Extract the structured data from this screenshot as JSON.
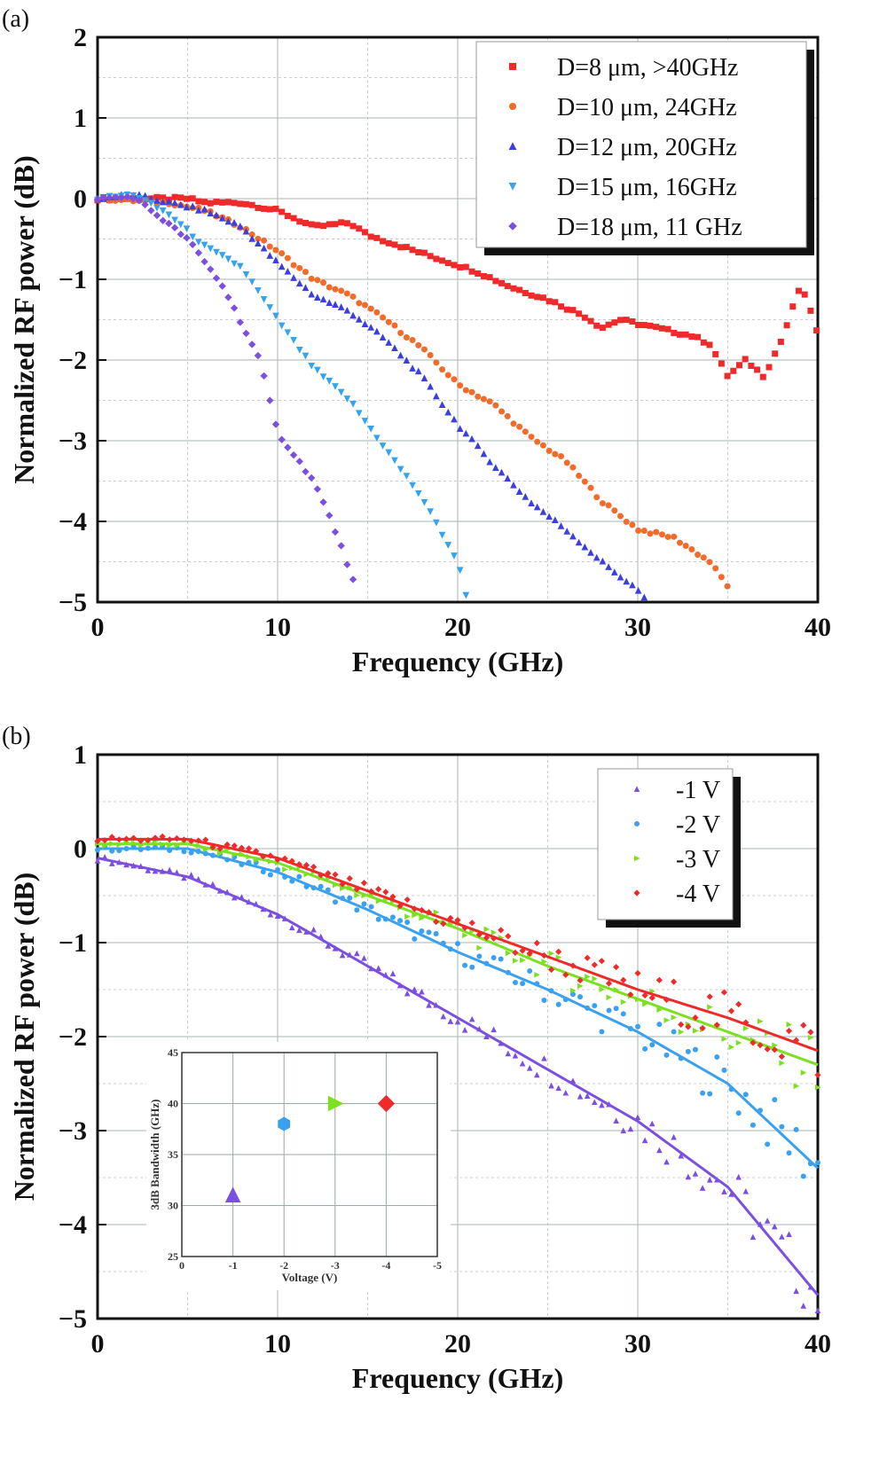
{
  "chart_data": [
    {
      "panel_label": "(a)",
      "type": "scatter",
      "xlabel": "Frequency (GHz)",
      "ylabel": "Normalized RF power (dB)",
      "xlim": [
        0,
        40
      ],
      "ylim": [
        -5,
        2
      ],
      "xticks": [
        "0",
        "10",
        "20",
        "30",
        "40"
      ],
      "yticks": [
        "2",
        "1",
        "0",
        "−1",
        "−2",
        "−3",
        "−4",
        "−5"
      ],
      "grid": true,
      "legend": "top-right",
      "series": [
        {
          "name": "D=8 μm, >40GHz",
          "color": "#ee2a2a",
          "marker": "square",
          "x": [
            0,
            2,
            4,
            5,
            6,
            8,
            10,
            12,
            14,
            15,
            17,
            19,
            21,
            23,
            25,
            27,
            28,
            29,
            31,
            33,
            34,
            35,
            36,
            37,
            38,
            39,
            39.5,
            40
          ],
          "y": [
            0,
            0,
            0,
            0,
            -0.05,
            -0.05,
            -0.15,
            -0.35,
            -0.3,
            -0.45,
            -0.6,
            -0.75,
            -0.9,
            -1.1,
            -1.25,
            -1.45,
            -1.6,
            -1.5,
            -1.6,
            -1.7,
            -1.8,
            -2.2,
            -2.0,
            -2.2,
            -1.75,
            -1.1,
            -1.3,
            -1.7
          ]
        },
        {
          "name": "D=10 μm, 24GHz",
          "color": "#f26b2a",
          "marker": "circle",
          "x": [
            0,
            4,
            6,
            8,
            10,
            12,
            14,
            16,
            18,
            20,
            22,
            24,
            26,
            28,
            30,
            32,
            34,
            35
          ],
          "y": [
            0,
            -0.05,
            -0.15,
            -0.35,
            -0.65,
            -1.0,
            -1.2,
            -1.5,
            -1.85,
            -2.3,
            -2.55,
            -2.95,
            -3.25,
            -3.75,
            -4.1,
            -4.2,
            -4.5,
            -4.8
          ]
        },
        {
          "name": "D=12 μm, 20GHz",
          "color": "#3b3fe0",
          "marker": "triangle-up",
          "x": [
            0,
            2,
            6,
            8,
            10,
            12,
            14,
            16,
            18,
            20,
            22,
            24,
            26,
            28,
            30,
            30.5
          ],
          "y": [
            0,
            0.05,
            -0.15,
            -0.35,
            -0.8,
            -1.2,
            -1.4,
            -1.75,
            -2.2,
            -2.8,
            -3.3,
            -3.75,
            -4.1,
            -4.5,
            -4.85,
            -5
          ]
        },
        {
          "name": "D=15 μm, 16GHz",
          "color": "#36a3ee",
          "marker": "triangle-down",
          "x": [
            0,
            2,
            4,
            6,
            8,
            10,
            12,
            14,
            16,
            18,
            20,
            20.5
          ],
          "y": [
            0,
            0.05,
            -0.2,
            -0.6,
            -0.85,
            -1.5,
            -2.1,
            -2.5,
            -3.1,
            -3.7,
            -4.5,
            -4.95
          ]
        },
        {
          "name": "D=18 μm, 11 GHz",
          "color": "#7b4fe0",
          "marker": "diamond",
          "x": [
            0,
            2,
            3,
            5,
            7,
            9,
            10,
            11,
            12,
            13,
            14,
            14.5
          ],
          "y": [
            0,
            0.02,
            -0.15,
            -0.5,
            -1.1,
            -2.0,
            -2.9,
            -3.2,
            -3.5,
            -4.0,
            -4.6,
            -4.95
          ]
        }
      ]
    },
    {
      "panel_label": "(b)",
      "type": "scatter",
      "xlabel": "Frequency (GHz)",
      "ylabel": "Normalized RF power (dB)",
      "xlim": [
        0,
        40
      ],
      "ylim": [
        -5,
        1
      ],
      "xticks": [
        "0",
        "10",
        "20",
        "30",
        "40"
      ],
      "yticks": [
        "1",
        "0",
        "−1",
        "−2",
        "−3",
        "−4",
        "−5"
      ],
      "grid": true,
      "legend": "top-right",
      "series": [
        {
          "name": "-1 V",
          "color": "#7b4fe0",
          "marker": "triangle-up",
          "x": [
            0,
            5,
            10,
            15,
            20,
            25,
            30,
            35,
            40
          ],
          "y": [
            -0.1,
            -0.3,
            -0.7,
            -1.25,
            -1.8,
            -2.35,
            -2.9,
            -3.6,
            -4.75
          ]
        },
        {
          "name": "-2 V",
          "color": "#3aa0f0",
          "marker": "circle",
          "x": [
            0,
            5,
            10,
            15,
            20,
            25,
            30,
            35,
            40
          ],
          "y": [
            0,
            0,
            -0.25,
            -0.65,
            -1.1,
            -1.5,
            -1.95,
            -2.5,
            -3.4
          ]
        },
        {
          "name": "-3 V",
          "color": "#7be020",
          "marker": "triangle-right",
          "x": [
            0,
            5,
            10,
            15,
            20,
            25,
            30,
            35,
            40
          ],
          "y": [
            0.05,
            0.05,
            -0.15,
            -0.5,
            -0.85,
            -1.25,
            -1.6,
            -1.95,
            -2.3
          ]
        },
        {
          "name": "-4 V",
          "color": "#ee2a2a",
          "marker": "diamond",
          "x": [
            0,
            5,
            10,
            15,
            20,
            25,
            30,
            35,
            40
          ],
          "y": [
            0.1,
            0.1,
            -0.1,
            -0.45,
            -0.8,
            -1.15,
            -1.5,
            -1.8,
            -2.15
          ]
        }
      ],
      "inset": {
        "type": "scatter",
        "xlabel": "Voltage (V)",
        "ylabel": "3dB Bandwidth (GHz)",
        "xlim": [
          0,
          -5
        ],
        "ylim": [
          25,
          45
        ],
        "xticks": [
          "0",
          "-1",
          "-2",
          "-3",
          "-4",
          "-5"
        ],
        "yticks": [
          "45",
          "40",
          "35",
          "30",
          "25"
        ],
        "points": [
          {
            "x": -1,
            "y": 31,
            "color": "#7b4fe0",
            "marker": "triangle-up"
          },
          {
            "x": -2,
            "y": 38,
            "color": "#3aa0f0",
            "marker": "hexagon"
          },
          {
            "x": -3,
            "y": 40,
            "color": "#7be020",
            "marker": "triangle-right"
          },
          {
            "x": -4,
            "y": 40,
            "color": "#ee2a2a",
            "marker": "diamond"
          }
        ]
      }
    }
  ]
}
